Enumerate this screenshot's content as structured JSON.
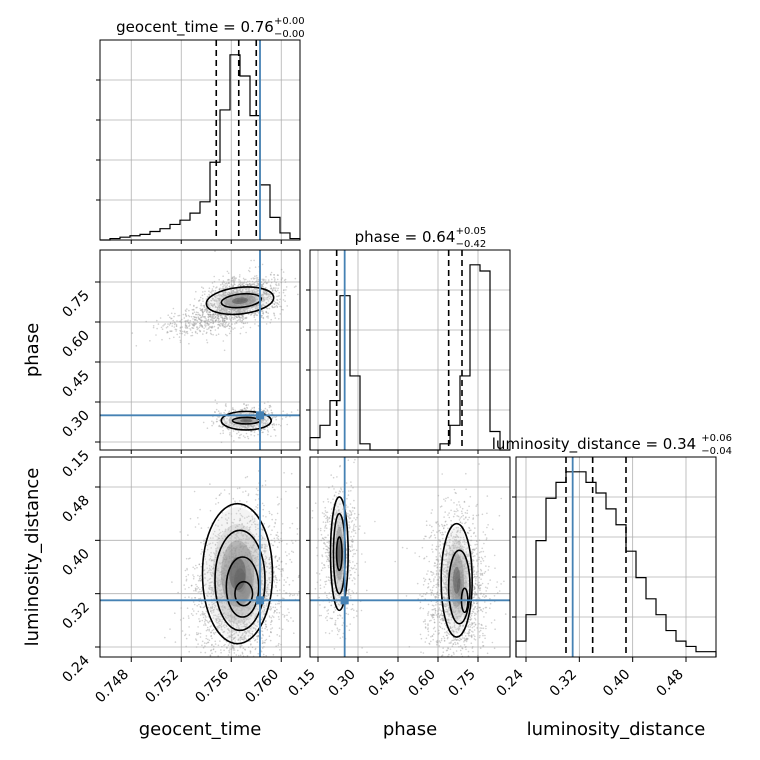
{
  "chart_data": {
    "type": "corner",
    "truth_color": "#4682b4",
    "parameters": [
      {
        "name": "geocent_time",
        "title": "geocent_time = 0.76",
        "title_plus": "+0.00",
        "title_minus": "−0.00",
        "range": [
          0.7455,
          0.7615
        ],
        "ticks": [
          0.748,
          0.752,
          0.756,
          0.76
        ],
        "tick_labels": [
          "0.748",
          "0.752",
          "0.756",
          "0.760"
        ],
        "truth": 0.7583,
        "quantiles": [
          0.7548,
          0.7566,
          0.758
        ],
        "histogram_edges": [
          0.7455,
          0.7463,
          0.7471,
          0.7479,
          0.7487,
          0.7495,
          0.7503,
          0.7511,
          0.7519,
          0.7527,
          0.7535,
          0.7543,
          0.7551,
          0.7559,
          0.7567,
          0.7575,
          0.7583,
          0.7591,
          0.7599,
          0.7607,
          0.7615
        ],
        "histogram": [
          0,
          1,
          2,
          3,
          4,
          6,
          8,
          11,
          14,
          19,
          27,
          55,
          92,
          131,
          116,
          88,
          39,
          16,
          5,
          1
        ]
      },
      {
        "name": "phase",
        "title": "phase = 0.64",
        "title_plus": "+0.05",
        "title_minus": "−0.42",
        "range": [
          0.12,
          0.87
        ],
        "ticks": [
          0.15,
          0.3,
          0.45,
          0.6,
          0.75
        ],
        "tick_labels": [
          "0.15",
          "0.30",
          "0.45",
          "0.60",
          "0.75"
        ],
        "truth": 0.25,
        "quantiles": [
          0.22,
          0.64,
          0.69
        ],
        "histogram_edges": [
          0.12,
          0.1575,
          0.195,
          0.2325,
          0.27,
          0.3075,
          0.345,
          0.3825,
          0.42,
          0.4575,
          0.495,
          0.5325,
          0.57,
          0.6075,
          0.645,
          0.6825,
          0.72,
          0.7575,
          0.795,
          0.8325,
          0.87
        ],
        "histogram": [
          2,
          4,
          8,
          25,
          12,
          1,
          0,
          0,
          0,
          0,
          0,
          0,
          0,
          1,
          4,
          12,
          30,
          29,
          3,
          0
        ]
      },
      {
        "name": "luminosity_distance",
        "title": "luminosity_distance = 0.34",
        "title_plus": "+0.06",
        "title_minus": "−0.04",
        "range": [
          0.225,
          0.525
        ],
        "ticks": [
          0.24,
          0.32,
          0.4,
          0.48
        ],
        "tick_labels": [
          "0.24",
          "0.32",
          "0.40",
          "0.48"
        ],
        "truth": 0.31,
        "quantiles": [
          0.3,
          0.34,
          0.39
        ],
        "histogram_edges": [
          0.225,
          0.24,
          0.255,
          0.27,
          0.285,
          0.3,
          0.315,
          0.33,
          0.345,
          0.36,
          0.375,
          0.39,
          0.405,
          0.42,
          0.435,
          0.45,
          0.465,
          0.48,
          0.495,
          0.51,
          0.525
        ],
        "histogram": [
          3,
          8,
          22,
          30,
          33,
          35,
          35,
          33,
          31,
          28,
          25,
          20,
          15,
          11,
          8,
          5,
          3,
          2,
          1,
          1
        ]
      }
    ],
    "grid": true
  }
}
